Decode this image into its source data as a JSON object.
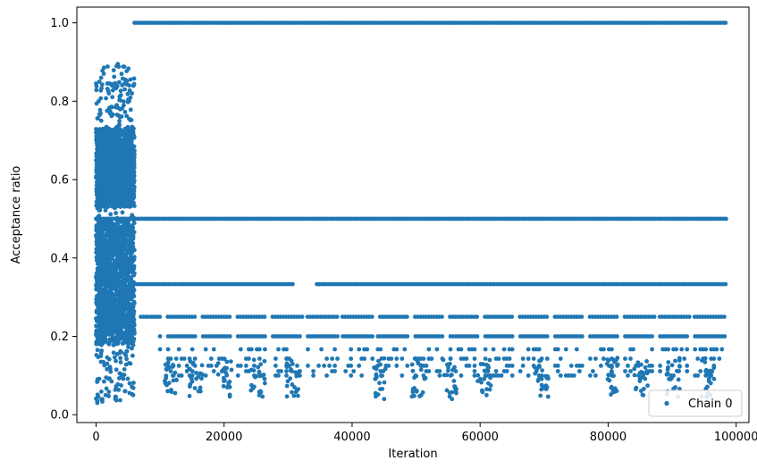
{
  "chart_data": {
    "type": "scatter",
    "xlabel": "Iteration",
    "ylabel": "Acceptance ratio",
    "xlim": [
      -3000,
      102000
    ],
    "ylim": [
      -0.02,
      1.04
    ],
    "x_ticks": [
      0,
      20000,
      40000,
      60000,
      80000,
      100000
    ],
    "x_tick_labels": [
      "0",
      "20000",
      "40000",
      "60000",
      "80000",
      "100000"
    ],
    "y_ticks": [
      0.0,
      0.2,
      0.4,
      0.6,
      0.8,
      1.0
    ],
    "y_tick_labels": [
      "0.0",
      "0.2",
      "0.4",
      "0.6",
      "0.8",
      "1.0"
    ],
    "grid": false,
    "legend_position": "lower-right",
    "series": [
      {
        "name": "Chain 0",
        "color": "#1f77b4",
        "marker": "circle",
        "x_range": [
          0,
          98500
        ],
        "burn_in": {
          "x_range": [
            0,
            6000
          ],
          "min_y": 0.03,
          "max_y": 0.89,
          "dense_bands": [
            [
              0.18,
              0.5
            ],
            [
              0.53,
              0.73
            ]
          ]
        },
        "levels": [
          {
            "y": 1.0,
            "x_range": [
              6000,
              98500
            ]
          },
          {
            "y": 0.5,
            "x_range": [
              0,
              98500
            ]
          },
          {
            "y": 0.333,
            "x_range": [
              6000,
              98500
            ]
          },
          {
            "y": 0.25,
            "x_range": [
              7000,
              98500
            ]
          },
          {
            "y": 0.2,
            "x_range": [
              10000,
              98500
            ]
          },
          {
            "y": 0.167,
            "x_range": [
              10000,
              98500
            ]
          },
          {
            "y": 0.143,
            "x_range": [
              10000,
              98500
            ]
          },
          {
            "y": 0.125,
            "x_range": [
              10000,
              98500
            ]
          },
          {
            "y": 0.111,
            "x_range": [
              10000,
              98500
            ]
          },
          {
            "y": 0.1,
            "x_range": [
              10000,
              98500
            ]
          }
        ],
        "sample_points": [
          [
            0,
            0.845
          ],
          [
            200,
            0.03
          ],
          [
            400,
            0.8
          ],
          [
            800,
            0.86
          ],
          [
            1200,
            0.87
          ],
          [
            2000,
            0.82
          ],
          [
            3400,
            0.895
          ],
          [
            4600,
            0.855
          ],
          [
            5200,
            0.84
          ],
          [
            5600,
            0.82
          ],
          [
            1500,
            0.05
          ],
          [
            3000,
            0.04
          ],
          [
            4500,
            0.06
          ],
          [
            5800,
            0.05
          ],
          [
            12000,
            0.1
          ],
          [
            16000,
            0.06
          ],
          [
            20500,
            0.07
          ],
          [
            25700,
            0.06
          ],
          [
            31000,
            0.07
          ],
          [
            45000,
            0.04
          ],
          [
            50800,
            0.05
          ],
          [
            55600,
            0.04
          ],
          [
            61000,
            0.05
          ],
          [
            70000,
            0.07
          ],
          [
            81000,
            0.06
          ],
          [
            85500,
            0.05
          ],
          [
            90500,
            0.07
          ],
          [
            96000,
            0.05
          ]
        ]
      }
    ]
  }
}
